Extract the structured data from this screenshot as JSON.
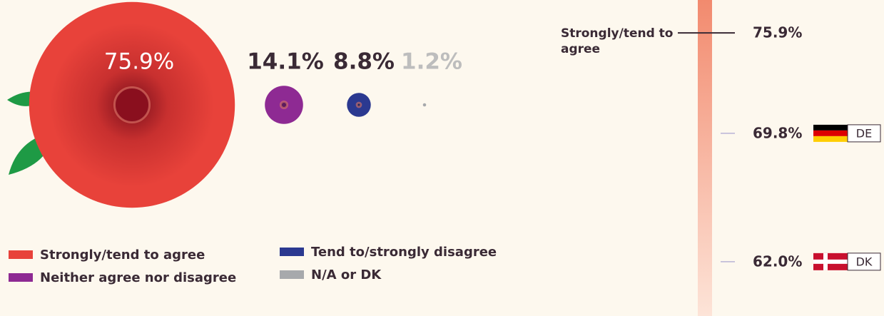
{
  "chart_data": [
    {
      "type": "bubble",
      "categories": [
        "Strongly/tend to agree",
        "Neither agree nor disagree",
        "Tend to/strongly disagree",
        "N/A or DK"
      ],
      "values": [
        75.9,
        14.1,
        8.8,
        1.2
      ],
      "value_labels": [
        "75.9%",
        "14.1%",
        "8.8%",
        "1.2%"
      ],
      "colors": [
        "#e8423a",
        "#8e2a93",
        "#2b3990",
        "#a7a9ac"
      ],
      "label_colors": [
        "#ffffff",
        "#3a2a35",
        "#3a2a35",
        "#bdbdbd"
      ]
    },
    {
      "type": "scale",
      "categories": [
        "Strongly/tend to agree",
        "DE",
        "DK"
      ],
      "values": [
        75.9,
        69.8,
        62.0
      ],
      "value_labels": [
        "75.9%",
        "69.8%",
        "62.0%"
      ],
      "ylim": [
        58.7,
        77.9
      ]
    }
  ]
}
